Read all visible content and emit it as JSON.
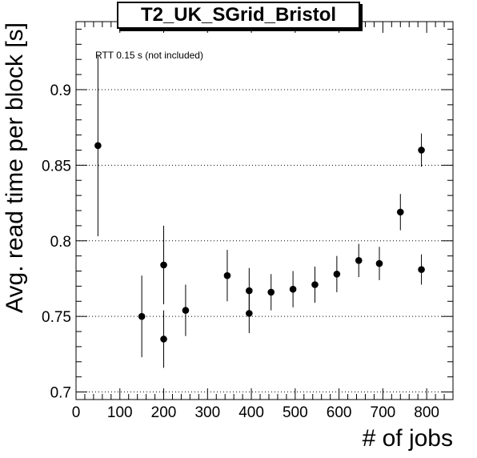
{
  "chart_data": {
    "type": "scatter",
    "title": "T2_UK_SGrid_Bristol",
    "xlabel": "# of jobs",
    "ylabel": "Avg. read time per block [s]",
    "annotation": "RTT 0.15 s (not included)",
    "xlim": [
      0,
      860
    ],
    "ylim": [
      0.695,
      0.945
    ],
    "x_ticks": [
      0,
      100,
      200,
      300,
      400,
      500,
      600,
      700,
      800
    ],
    "x_tick_labels": [
      "0",
      "100",
      "200",
      "300",
      "400",
      "500",
      "600",
      "700",
      "800"
    ],
    "y_ticks": [
      0.7,
      0.75,
      0.8,
      0.85,
      0.9
    ],
    "y_tick_labels": [
      "0.7",
      "0.75",
      "0.8",
      "0.85",
      "0.9"
    ],
    "grid": "horizontal dotted at major y ticks",
    "series": [
      {
        "marker": "filled circle",
        "color": "#000000",
        "points": [
          {
            "x": 50,
            "y": 0.863,
            "err": 0.06
          },
          {
            "x": 150,
            "y": 0.75,
            "err": 0.027
          },
          {
            "x": 200,
            "y": 0.784,
            "err": 0.026
          },
          {
            "x": 200,
            "y": 0.735,
            "err": 0.019
          },
          {
            "x": 250,
            "y": 0.754,
            "err": 0.017
          },
          {
            "x": 345,
            "y": 0.777,
            "err": 0.017
          },
          {
            "x": 395,
            "y": 0.767,
            "err": 0.015
          },
          {
            "x": 395,
            "y": 0.752,
            "err": 0.013
          },
          {
            "x": 445,
            "y": 0.766,
            "err": 0.012
          },
          {
            "x": 495,
            "y": 0.768,
            "err": 0.012
          },
          {
            "x": 545,
            "y": 0.771,
            "err": 0.012
          },
          {
            "x": 595,
            "y": 0.778,
            "err": 0.012
          },
          {
            "x": 645,
            "y": 0.787,
            "err": 0.011
          },
          {
            "x": 692,
            "y": 0.785,
            "err": 0.011
          },
          {
            "x": 740,
            "y": 0.819,
            "err": 0.012
          },
          {
            "x": 788,
            "y": 0.86,
            "err": 0.011
          },
          {
            "x": 788,
            "y": 0.781,
            "err": 0.01
          }
        ]
      }
    ]
  }
}
